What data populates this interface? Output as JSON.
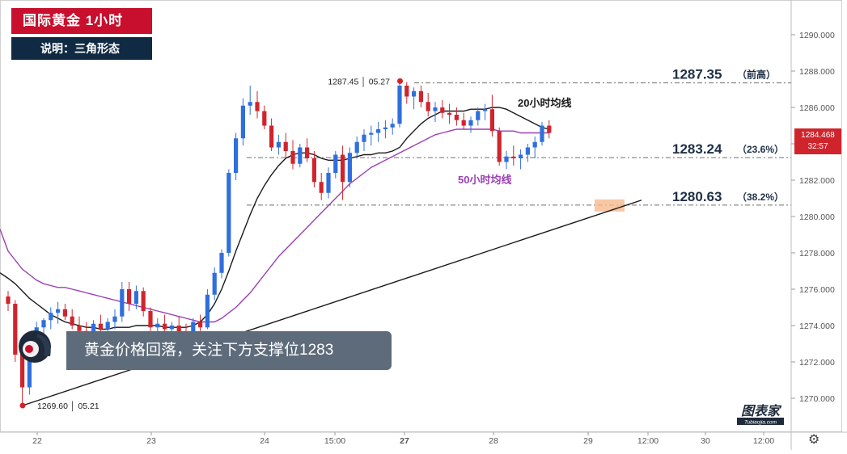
{
  "header": {
    "title": "国际黄金  1小时",
    "note": "说明：三角形态"
  },
  "banner": {
    "text": "黄金价格回落，关注下方支撑位1283"
  },
  "watermark": {
    "text": "图表家",
    "sub": "Tubiaojia.com"
  },
  "price_badge": {
    "price": "1284.468",
    "countdown": "32:57"
  },
  "colors": {
    "up": "#2f6fdc",
    "down": "#d0242c",
    "ma20": "#1a1a1a",
    "ma50": "#9b3fb5",
    "title_bg": "#c8102e",
    "note_bg": "#102a43",
    "support_box": "#f6b98c"
  },
  "chart_data": {
    "type": "candlestick",
    "title": "国际黄金  1小时",
    "y_axis": {
      "min": 1269,
      "max": 1291,
      "ticks": [
        "1270.000",
        "1272.000",
        "1274.000",
        "1276.000",
        "1278.000",
        "1280.000",
        "1282.000",
        "1284.000",
        "1286.000",
        "1288.000",
        "1290.000"
      ]
    },
    "x_axis": {
      "ticks": [
        "22",
        "23",
        "24",
        "15:00",
        "27",
        "28",
        "29",
        "12:00",
        "30",
        "12:00"
      ]
    },
    "levels": [
      {
        "price": 1287.35,
        "label": "1287.35",
        "tag": "（前高）"
      },
      {
        "price": 1283.24,
        "label": "1283.24",
        "tag": "（23.6%）"
      },
      {
        "price": 1280.63,
        "label": "1280.63",
        "tag": "（38.2%）"
      }
    ],
    "annotations": [
      {
        "text": "1287.45 │ 05.27",
        "price": 1287.45
      },
      {
        "text": "1269.60 │ 05.21",
        "price": 1269.6
      }
    ],
    "series_labels": {
      "ma20": "20小时均线",
      "ma50": "50小时均线"
    },
    "trendline": {
      "from_price": 1269.6,
      "to_price": 1280.9
    },
    "ma20": [
      1276.6,
      1276.3,
      1275.9,
      1275.5,
      1275.2,
      1274.9,
      1274.6,
      1274.4,
      1274.2,
      1274.1,
      1274.0,
      1273.9,
      1273.9,
      1273.8,
      1273.8,
      1273.9,
      1273.9,
      1273.9,
      1274.0,
      1274.0,
      1274.0,
      1274.0,
      1273.9,
      1273.9,
      1273.9,
      1273.9,
      1274.0,
      1274.2,
      1274.6,
      1275.2,
      1276.0,
      1277.0,
      1278.1,
      1279.1,
      1280.1,
      1281.0,
      1281.7,
      1282.3,
      1282.8,
      1283.2,
      1283.4,
      1283.5,
      1283.5,
      1283.4,
      1283.2,
      1283.1,
      1283.1,
      1283.1,
      1283.2,
      1283.3,
      1283.4,
      1283.4,
      1283.5,
      1283.5,
      1283.6,
      1283.8,
      1284.3,
      1284.7,
      1285.1,
      1285.4,
      1285.6,
      1285.8,
      1285.8,
      1285.8,
      1285.8,
      1285.9,
      1285.9,
      1285.9,
      1286.0,
      1286.0,
      1285.9,
      1285.7,
      1285.5,
      1285.3,
      1285.1,
      1284.9,
      1284.8
    ],
    "ma50": [
      1278.1,
      1277.6,
      1277.1,
      1276.8,
      1276.5,
      1276.3,
      1276.2,
      1276.1,
      1276.1,
      1276.0,
      1275.9,
      1275.8,
      1275.7,
      1275.6,
      1275.5,
      1275.4,
      1275.3,
      1275.2,
      1275.1,
      1275.0,
      1274.9,
      1274.8,
      1274.7,
      1274.6,
      1274.5,
      1274.4,
      1274.3,
      1274.2,
      1274.2,
      1274.2,
      1274.4,
      1274.7,
      1275.0,
      1275.4,
      1275.8,
      1276.3,
      1276.8,
      1277.3,
      1277.8,
      1278.2,
      1278.6,
      1279.0,
      1279.4,
      1279.8,
      1280.2,
      1280.6,
      1281.0,
      1281.4,
      1281.8,
      1282.1,
      1282.4,
      1282.7,
      1282.9,
      1283.1,
      1283.3,
      1283.5,
      1283.7,
      1283.9,
      1284.1,
      1284.3,
      1284.5,
      1284.6,
      1284.7,
      1284.8,
      1284.8,
      1284.8,
      1284.8,
      1284.8,
      1284.8,
      1284.7,
      1284.7,
      1284.7,
      1284.6,
      1284.6,
      1284.6,
      1284.6,
      1284.6
    ],
    "candles": [
      [
        1275.6,
        1275.9,
        1274.8,
        1275.2
      ],
      [
        1275.2,
        1275.4,
        1272.0,
        1272.4
      ],
      [
        1272.5,
        1273.0,
        1269.6,
        1270.6
      ],
      [
        1270.6,
        1273.5,
        1270.2,
        1273.2
      ],
      [
        1273.2,
        1274.2,
        1272.8,
        1273.9
      ],
      [
        1273.9,
        1274.4,
        1273.4,
        1274.3
      ],
      [
        1274.3,
        1275.0,
        1273.8,
        1274.7
      ],
      [
        1274.7,
        1275.3,
        1274.1,
        1274.9
      ],
      [
        1274.9,
        1275.2,
        1274.3,
        1274.5
      ],
      [
        1274.5,
        1274.9,
        1273.8,
        1274.0
      ],
      [
        1274.0,
        1274.5,
        1273.5,
        1273.7
      ],
      [
        1273.7,
        1274.2,
        1273.2,
        1273.6
      ],
      [
        1273.6,
        1274.3,
        1273.3,
        1274.1
      ],
      [
        1274.1,
        1274.6,
        1273.5,
        1273.8
      ],
      [
        1273.8,
        1274.4,
        1273.3,
        1274.2
      ],
      [
        1274.2,
        1274.9,
        1273.8,
        1274.5
      ],
      [
        1274.5,
        1276.4,
        1274.2,
        1276.0
      ],
      [
        1276.0,
        1276.4,
        1274.8,
        1275.2
      ],
      [
        1275.2,
        1276.2,
        1274.9,
        1275.9
      ],
      [
        1275.9,
        1276.1,
        1274.5,
        1274.8
      ],
      [
        1274.8,
        1275.0,
        1273.6,
        1273.9
      ],
      [
        1273.9,
        1274.4,
        1273.4,
        1274.1
      ],
      [
        1274.1,
        1274.6,
        1273.6,
        1273.8
      ],
      [
        1273.8,
        1274.2,
        1273.3,
        1274.0
      ],
      [
        1274.0,
        1274.5,
        1273.5,
        1273.6
      ],
      [
        1273.6,
        1274.1,
        1272.9,
        1273.2
      ],
      [
        1273.2,
        1274.4,
        1272.9,
        1274.2
      ],
      [
        1274.2,
        1274.6,
        1273.7,
        1273.9
      ],
      [
        1273.9,
        1276.0,
        1273.8,
        1275.7
      ],
      [
        1275.7,
        1277.2,
        1275.4,
        1276.9
      ],
      [
        1276.9,
        1278.2,
        1276.6,
        1278.0
      ],
      [
        1278.0,
        1282.6,
        1277.8,
        1282.4
      ],
      [
        1282.4,
        1284.6,
        1282.0,
        1284.3
      ],
      [
        1284.3,
        1286.5,
        1283.9,
        1286.1
      ],
      [
        1286.1,
        1287.2,
        1285.6,
        1286.3
      ],
      [
        1286.3,
        1286.9,
        1285.4,
        1285.8
      ],
      [
        1285.8,
        1286.1,
        1284.8,
        1285.0
      ],
      [
        1285.0,
        1285.4,
        1283.6,
        1283.8
      ],
      [
        1283.8,
        1284.5,
        1283.4,
        1284.1
      ],
      [
        1284.1,
        1284.6,
        1283.2,
        1283.6
      ],
      [
        1283.6,
        1284.2,
        1282.6,
        1282.9
      ],
      [
        1282.9,
        1284.0,
        1282.7,
        1283.8
      ],
      [
        1283.8,
        1284.3,
        1283.0,
        1283.2
      ],
      [
        1283.2,
        1283.6,
        1281.6,
        1281.9
      ],
      [
        1281.9,
        1282.4,
        1280.9,
        1281.3
      ],
      [
        1281.3,
        1282.7,
        1281.0,
        1282.4
      ],
      [
        1282.4,
        1283.6,
        1282.1,
        1283.4
      ],
      [
        1283.4,
        1283.9,
        1280.9,
        1281.9
      ],
      [
        1281.9,
        1283.8,
        1281.6,
        1283.5
      ],
      [
        1283.5,
        1284.4,
        1283.2,
        1284.1
      ],
      [
        1284.1,
        1284.8,
        1283.6,
        1284.5
      ],
      [
        1284.5,
        1285.0,
        1283.9,
        1284.6
      ],
      [
        1284.6,
        1285.2,
        1284.1,
        1284.8
      ],
      [
        1284.8,
        1285.3,
        1284.3,
        1284.9
      ],
      [
        1284.9,
        1285.4,
        1284.5,
        1285.1
      ],
      [
        1285.1,
        1287.45,
        1284.9,
        1287.2
      ],
      [
        1287.2,
        1287.4,
        1286.2,
        1286.6
      ],
      [
        1286.6,
        1287.1,
        1285.9,
        1286.9
      ],
      [
        1286.9,
        1287.2,
        1286.0,
        1286.3
      ],
      [
        1286.3,
        1286.8,
        1285.5,
        1285.8
      ],
      [
        1285.8,
        1286.3,
        1285.2,
        1286.0
      ],
      [
        1286.0,
        1286.4,
        1285.4,
        1285.7
      ],
      [
        1285.7,
        1286.2,
        1285.1,
        1285.6
      ],
      [
        1285.6,
        1286.0,
        1285.0,
        1285.3
      ],
      [
        1285.3,
        1285.7,
        1284.8,
        1285.0
      ],
      [
        1285.0,
        1285.5,
        1284.6,
        1285.3
      ],
      [
        1285.3,
        1286.0,
        1285.0,
        1285.8
      ],
      [
        1285.8,
        1286.2,
        1285.3,
        1285.9
      ],
      [
        1285.9,
        1286.7,
        1284.4,
        1284.7
      ],
      [
        1284.7,
        1284.9,
        1282.8,
        1283.0
      ],
      [
        1283.0,
        1283.6,
        1282.6,
        1283.3
      ],
      [
        1283.3,
        1283.9,
        1282.8,
        1283.2
      ],
      [
        1283.2,
        1283.7,
        1282.6,
        1283.4
      ],
      [
        1283.4,
        1284.0,
        1283.0,
        1283.8
      ],
      [
        1283.8,
        1284.4,
        1283.2,
        1284.1
      ],
      [
        1284.1,
        1285.2,
        1283.9,
        1285.0
      ],
      [
        1285.0,
        1285.3,
        1284.3,
        1284.6
      ]
    ]
  }
}
